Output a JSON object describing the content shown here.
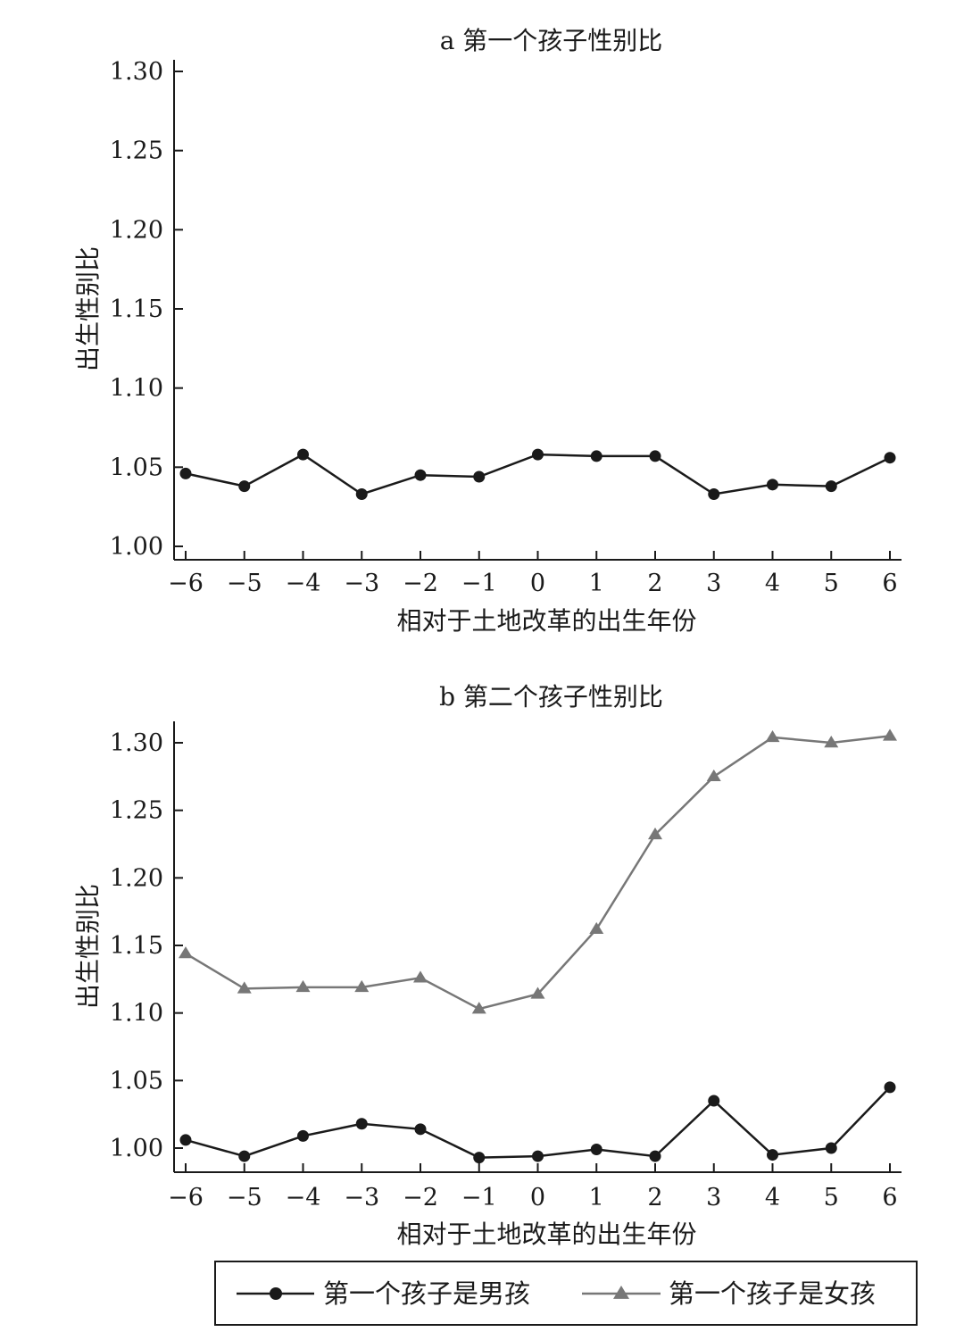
{
  "chart_data": [
    {
      "type": "line",
      "title": "a 第一个孩子性别比",
      "xlabel": "相对于土地改革的出生年份",
      "ylabel": "出生性别比",
      "x": [
        -6,
        -5,
        -4,
        -3,
        -2,
        -1,
        0,
        1,
        2,
        3,
        4,
        5,
        6
      ],
      "x_tick_labels": [
        "−6",
        "−5",
        "−4",
        "−3",
        "−2",
        "−1",
        "0",
        "1",
        "2",
        "3",
        "4",
        "5",
        "6"
      ],
      "y_ticks": [
        1.0,
        1.05,
        1.1,
        1.15,
        1.2,
        1.25,
        1.3
      ],
      "y_tick_labels": [
        "1.00",
        "1.05",
        "1.10",
        "1.15",
        "1.20",
        "1.25",
        "1.30"
      ],
      "ylim": [
        0.997,
        1.306
      ],
      "grid": false,
      "series": [
        {
          "marker": "circle",
          "color": "#1a1a1a",
          "values": [
            1.046,
            1.038,
            1.058,
            1.033,
            1.045,
            1.044,
            1.058,
            1.057,
            1.057,
            1.033,
            1.039,
            1.038,
            1.056
          ]
        }
      ]
    },
    {
      "type": "line",
      "title": "b 第二个孩子性别比",
      "xlabel": "相对于土地改革的出生年份",
      "ylabel": "出生性别比",
      "x": [
        -6,
        -5,
        -4,
        -3,
        -2,
        -1,
        0,
        1,
        2,
        3,
        4,
        5,
        6
      ],
      "x_tick_labels": [
        "−6",
        "−5",
        "−4",
        "−3",
        "−2",
        "−1",
        "0",
        "1",
        "2",
        "3",
        "4",
        "5",
        "6"
      ],
      "y_ticks": [
        1.0,
        1.05,
        1.1,
        1.15,
        1.2,
        1.25,
        1.3
      ],
      "y_tick_labels": [
        "1.00",
        "1.05",
        "1.10",
        "1.15",
        "1.20",
        "1.25",
        "1.30"
      ],
      "ylim": [
        0.991,
        1.307
      ],
      "grid": false,
      "legend": "bottom",
      "series": [
        {
          "name": "第一个孩子是男孩",
          "marker": "circle",
          "color": "#1a1a1a",
          "values": [
            1.006,
            0.994,
            1.009,
            1.018,
            1.014,
            0.993,
            0.994,
            0.999,
            0.994,
            1.035,
            0.995,
            1.0,
            1.045
          ]
        },
        {
          "name": "第一个孩子是女孩",
          "marker": "triangle",
          "color": "#777777",
          "values": [
            1.144,
            1.118,
            1.119,
            1.119,
            1.126,
            1.103,
            1.114,
            1.162,
            1.232,
            1.275,
            1.304,
            1.3,
            1.305
          ]
        }
      ]
    }
  ]
}
